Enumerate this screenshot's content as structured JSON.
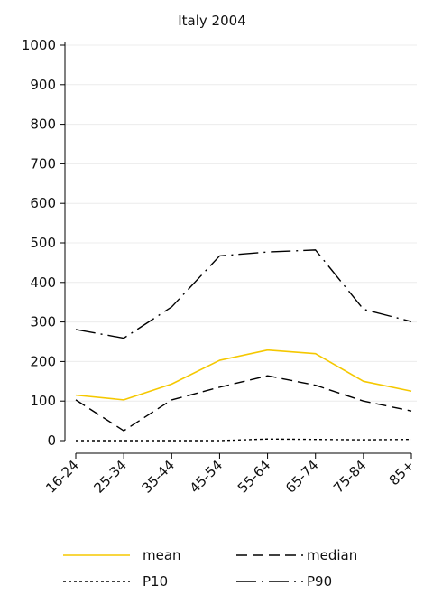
{
  "chart_data": {
    "type": "line",
    "title": "Italy 2004",
    "xlabel": "",
    "ylabel": "",
    "categories": [
      "16-24",
      "25-34",
      "35-44",
      "45-54",
      "55-64",
      "65-74",
      "75-84",
      "85+"
    ],
    "ylim": [
      0,
      1000
    ],
    "yticks": [
      "0",
      "100",
      "200",
      "300",
      "400",
      "500",
      "600",
      "700",
      "800",
      "900",
      "1000"
    ],
    "grid": true,
    "legend_position": "bottom",
    "series": [
      {
        "name": "mean",
        "color": "#f5c800",
        "style": "solid",
        "values": [
          115,
          103,
          143,
          203,
          229,
          220,
          150,
          125
        ]
      },
      {
        "name": "median",
        "color": "#000000",
        "style": "dashed",
        "values": [
          103,
          25,
          103,
          135,
          164,
          140,
          100,
          75
        ]
      },
      {
        "name": "P10",
        "color": "#000000",
        "style": "dotted",
        "values": [
          0,
          0,
          0,
          0,
          4,
          3,
          2,
          3
        ]
      },
      {
        "name": "P90",
        "color": "#000000",
        "style": "dash-dot",
        "values": [
          281,
          259,
          338,
          467,
          477,
          482,
          332,
          301
        ]
      }
    ]
  }
}
